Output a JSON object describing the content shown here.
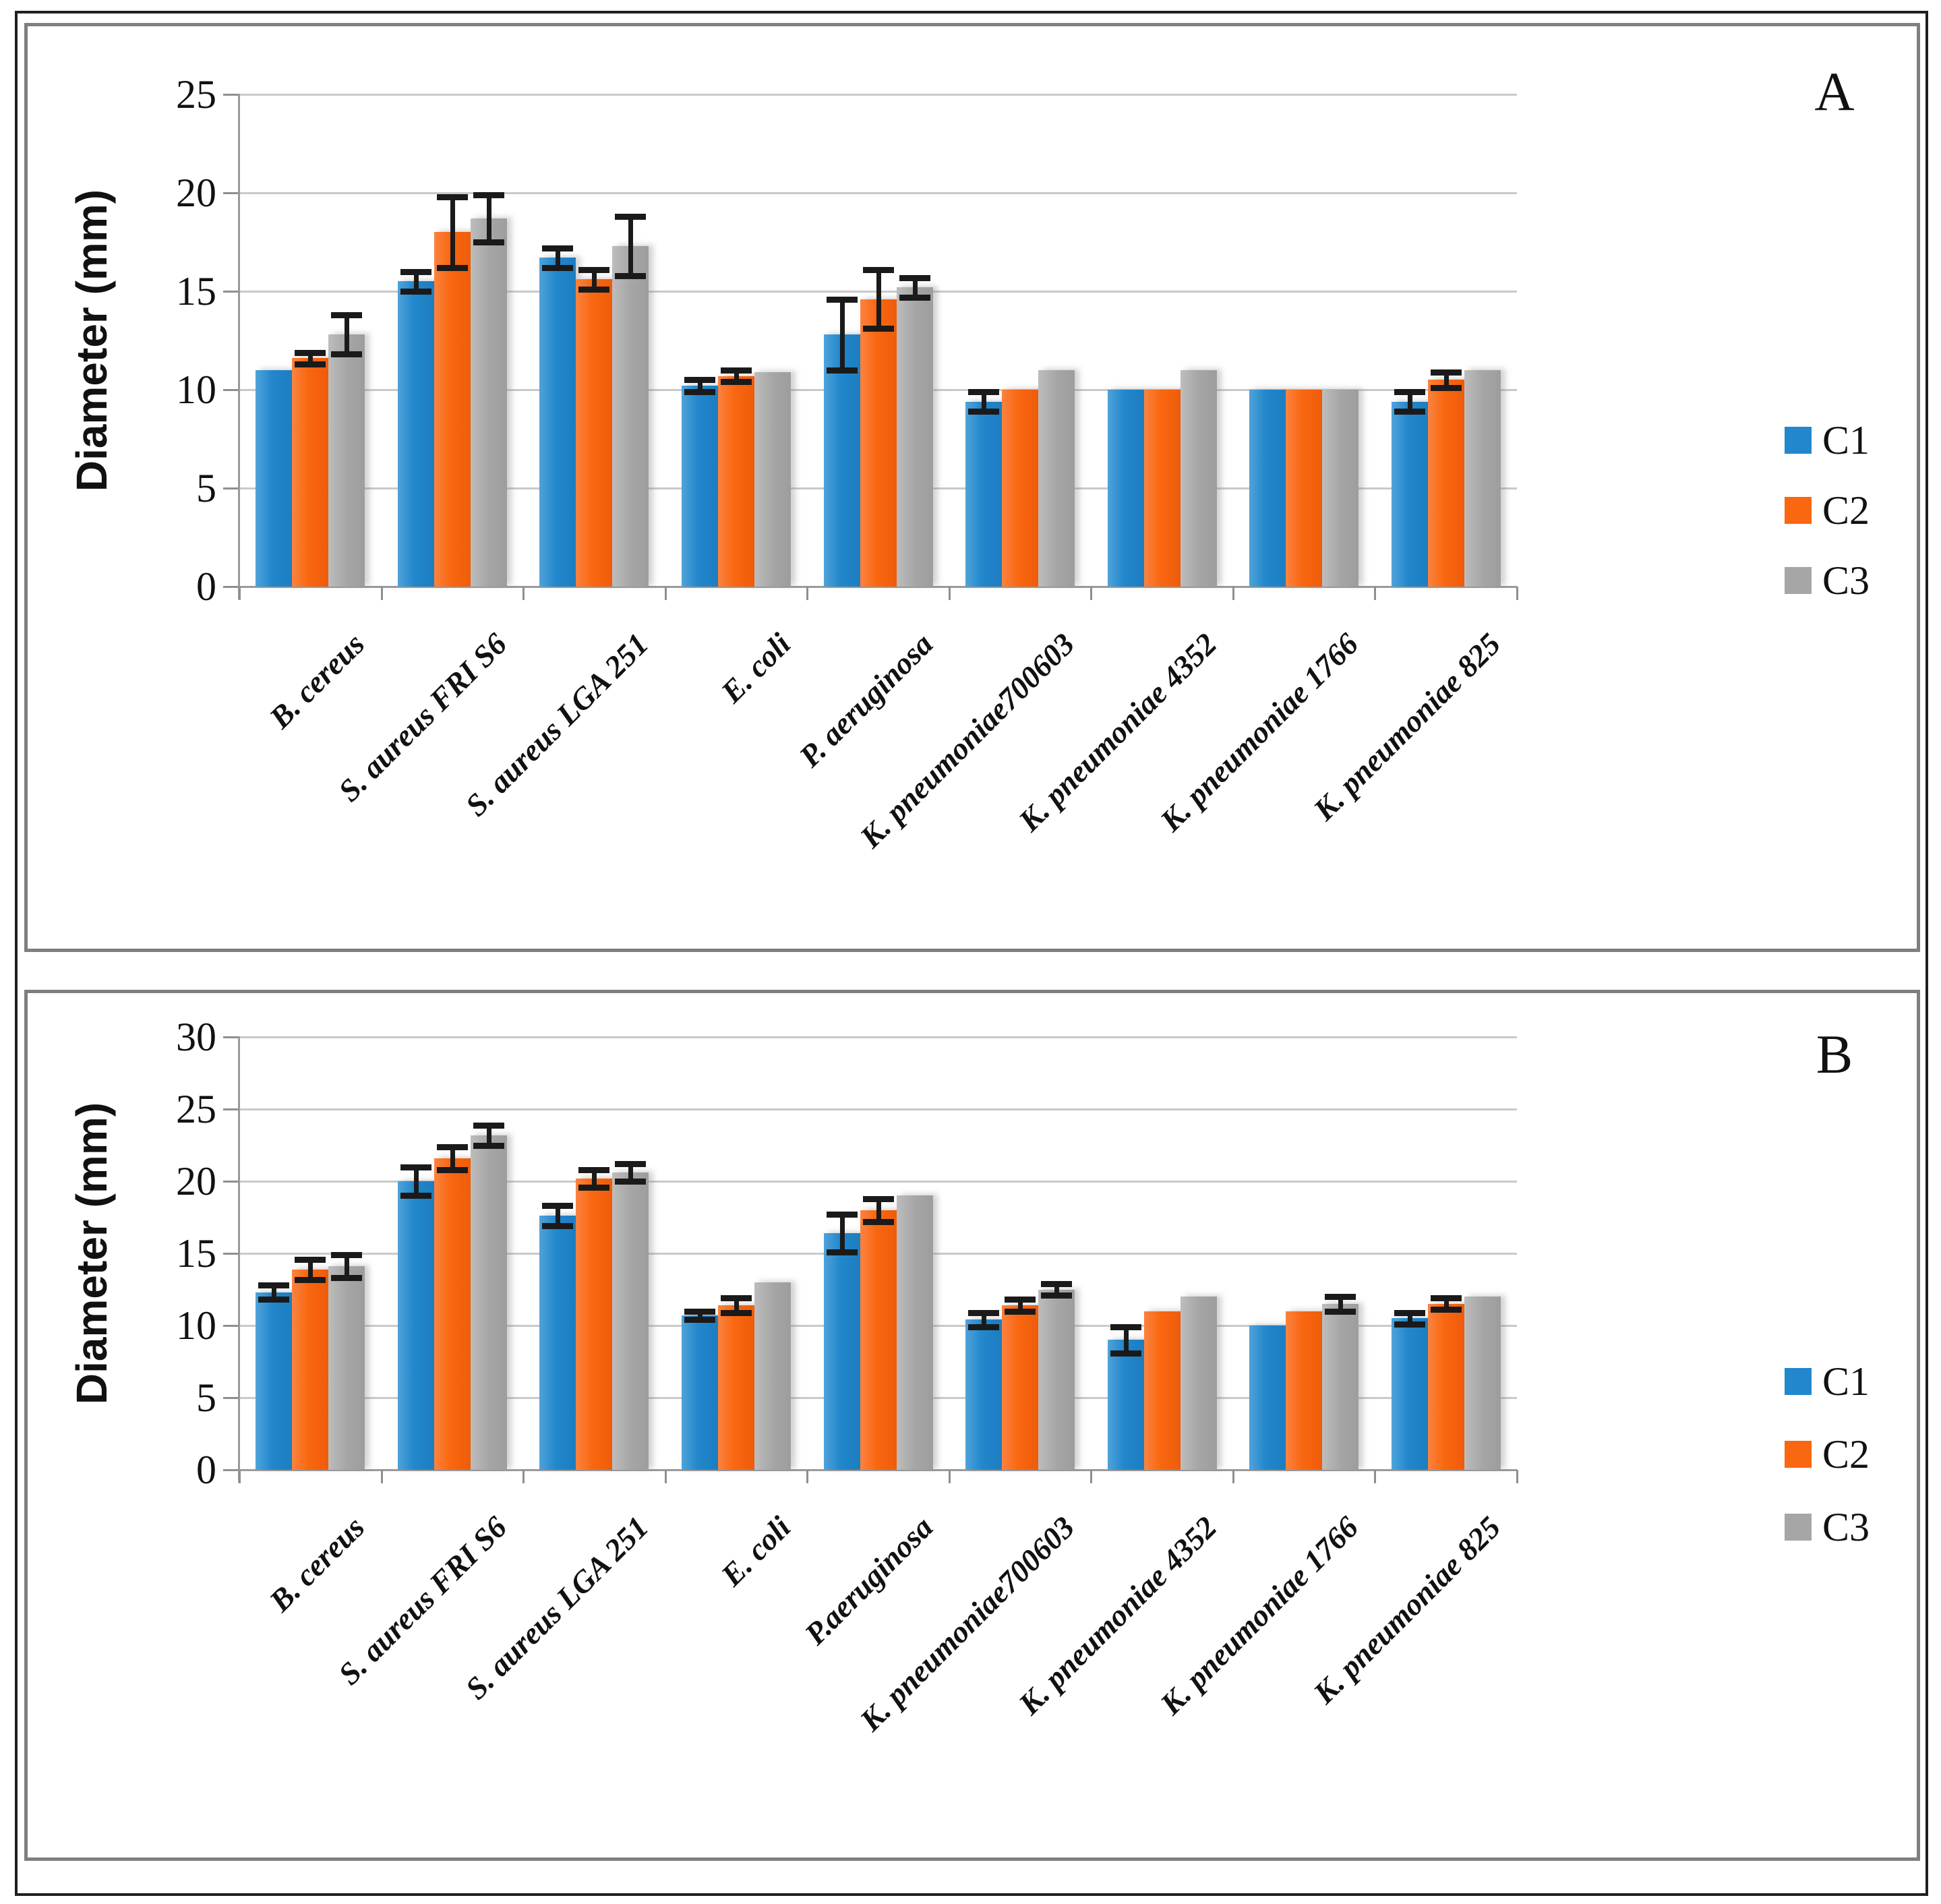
{
  "figure": {
    "panel_a_letter": "A",
    "panel_b_letter": "B"
  },
  "colors": {
    "c1_blue": "#2287cc",
    "c2_orange": "#f96711",
    "c3_gray": "#a6a6a6",
    "error_bar": "#1a1a1a"
  },
  "chart_data": [
    {
      "type": "bar",
      "panel_letter": "A",
      "ylabel": "Diameter (mm)",
      "ylim": [
        0,
        25
      ],
      "yticks": [
        0,
        5,
        10,
        15,
        20,
        25
      ],
      "grid": true,
      "legend_position": "right",
      "legend": [
        "C1",
        "C2",
        "C3"
      ],
      "categories": [
        "B. cereus",
        "S. aureus FRI S6",
        "S. aureus LGA 251",
        "E. coli",
        "P. aeruginosa",
        "K. pneumoniae700603",
        "K. pneumoniae 4352",
        "K. pneumoniae 1766",
        "K. pneumoniae 825"
      ],
      "series": [
        {
          "name": "C1",
          "values": [
            11.0,
            15.5,
            16.7,
            10.2,
            12.8,
            9.4,
            10.0,
            10.0,
            9.4
          ],
          "errors": [
            0,
            0.5,
            0.5,
            0.3,
            1.8,
            0.5,
            0,
            0,
            0.5
          ]
        },
        {
          "name": "C2",
          "values": [
            11.6,
            18.0,
            15.6,
            10.7,
            14.6,
            10.0,
            10.0,
            10.0,
            10.5
          ],
          "errors": [
            0.3,
            1.8,
            0.5,
            0.3,
            1.5,
            0,
            0,
            0,
            0.4
          ]
        },
        {
          "name": "C3",
          "values": [
            12.8,
            18.7,
            17.3,
            10.9,
            15.2,
            11.0,
            11.0,
            10.0,
            11.0
          ],
          "errors": [
            1.0,
            1.2,
            1.5,
            0,
            0.5,
            0,
            0,
            0,
            0
          ]
        }
      ]
    },
    {
      "type": "bar",
      "panel_letter": "B",
      "ylabel": "Diameter (mm)",
      "ylim": [
        0,
        30
      ],
      "yticks": [
        0,
        5,
        10,
        15,
        20,
        25,
        30
      ],
      "grid": true,
      "legend_position": "right",
      "legend": [
        "C1",
        "C2",
        "C3"
      ],
      "categories": [
        "B. cereus",
        "S. aureus FRI S6",
        "S. aureus LGA 251",
        "E. coli",
        "P.aeruginosa",
        "K. pneumoniae700603",
        "K. pneumoniae 4352",
        "K. pneumoniae 1766",
        "K. pneumoniae 825"
      ],
      "series": [
        {
          "name": "C1",
          "values": [
            12.3,
            20.0,
            17.6,
            10.7,
            16.4,
            10.4,
            9.0,
            10.0,
            10.5
          ],
          "errors": [
            0.5,
            1.0,
            0.7,
            0.3,
            1.3,
            0.5,
            0.9,
            0,
            0.4
          ]
        },
        {
          "name": "C2",
          "values": [
            13.9,
            21.6,
            20.2,
            11.4,
            18.0,
            11.4,
            11.0,
            11.0,
            11.5
          ],
          "errors": [
            0.7,
            0.8,
            0.6,
            0.5,
            0.8,
            0.4,
            0,
            0,
            0.4
          ]
        },
        {
          "name": "C3",
          "values": [
            14.1,
            23.2,
            20.6,
            13.0,
            19.0,
            12.5,
            12.0,
            11.5,
            12.0
          ],
          "errors": [
            0.8,
            0.7,
            0.6,
            0,
            0,
            0.4,
            0,
            0.5,
            0
          ]
        }
      ]
    }
  ]
}
